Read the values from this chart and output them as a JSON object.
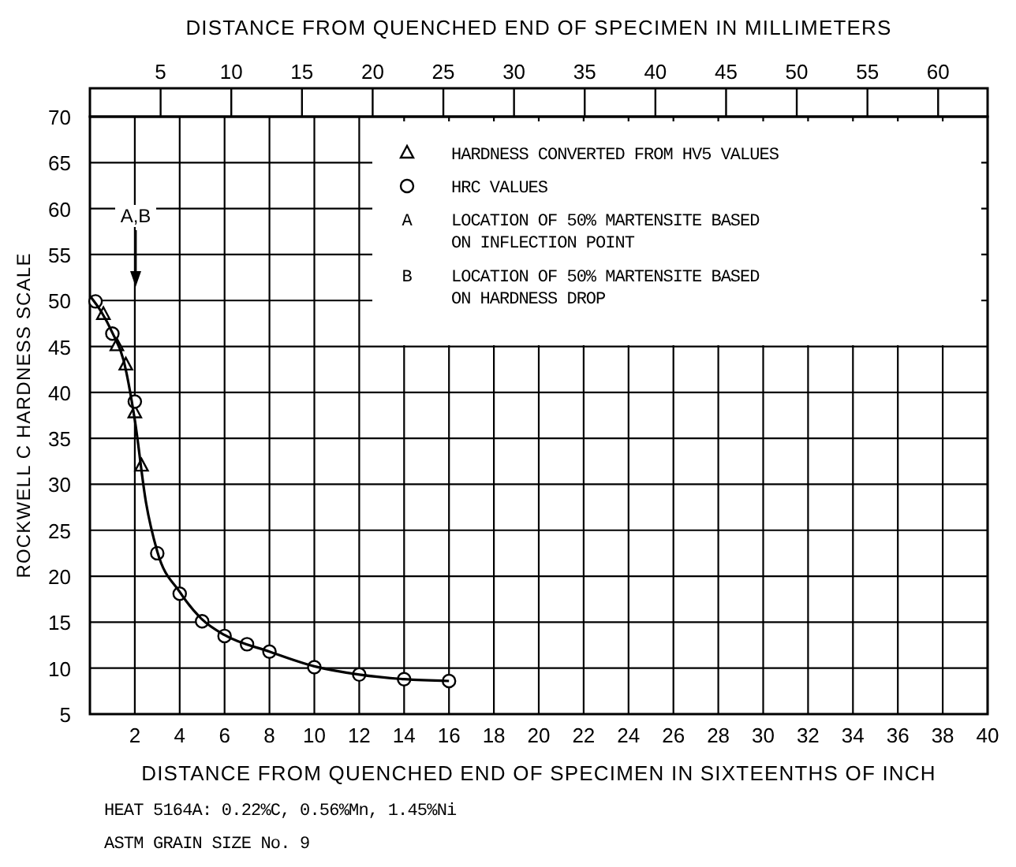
{
  "chart_data": {
    "type": "line",
    "xlabel": "DISTANCE FROM QUENCHED END OF SPECIMEN IN SIXTEENTHS OF INCH",
    "x2label": "DISTANCE FROM QUENCHED END OF SPECIMEN IN MILLIMETERS",
    "ylabel": "ROCKWELL C HARDNESS SCALE",
    "xlim": [
      0,
      40
    ],
    "xticks": [
      2,
      4,
      6,
      8,
      10,
      12,
      14,
      16,
      18,
      20,
      22,
      24,
      26,
      28,
      30,
      32,
      34,
      36,
      38,
      40
    ],
    "x2lim": [
      0,
      63.5
    ],
    "x2ticks": [
      5,
      10,
      15,
      20,
      25,
      30,
      35,
      40,
      45,
      50,
      55,
      60
    ],
    "ylim": [
      5,
      70
    ],
    "yticks": [
      5,
      10,
      15,
      20,
      25,
      30,
      35,
      40,
      45,
      50,
      55,
      60,
      65,
      70
    ],
    "grid": true,
    "legend": "top right",
    "series": [
      {
        "name": "HARDNESS CONVERTED FROM HV5 VALUES",
        "type": "scatter",
        "marker": "triangle",
        "color": "#000000",
        "x": [
          0.6,
          1.2,
          1.6,
          2,
          2.3
        ],
        "values": [
          48.5,
          45.1,
          43.0,
          37.8,
          32.0
        ]
      },
      {
        "name": "HRC VALUES",
        "type": "scatter",
        "marker": "circle",
        "color": "#000000",
        "x": [
          0.25,
          1,
          2,
          3,
          4,
          5,
          6,
          7,
          8,
          10,
          12,
          14,
          16
        ],
        "values": [
          49.9,
          46.4,
          39.0,
          22.5,
          18.1,
          15.1,
          13.5,
          12.6,
          11.8,
          10.1,
          9.3,
          8.8,
          8.6
        ]
      },
      {
        "color": "#000000",
        "x": [
          0,
          0.5,
          1,
          1.5,
          2,
          2.5,
          3,
          4,
          5,
          6,
          8,
          10,
          12,
          14,
          16
        ],
        "values": [
          50.5,
          48.8,
          46.5,
          43.5,
          37,
          28,
          22.7,
          18.3,
          15.3,
          13.6,
          11.8,
          10.2,
          9.3,
          8.8,
          8.6
        ]
      }
    ],
    "annotations": [
      "A,B",
      "A LOCATION OF 50% MARTENSITE BASED\nON INFLECTION POINT",
      "B LOCATION OF 50% MARTENSITE BASED\nON HARDNESS DROP",
      "HEAT 5164A:  0.22%C, 0.56%Mn, 1.45%Ni",
      "ASTM GRAIN SIZE No. 9"
    ]
  }
}
